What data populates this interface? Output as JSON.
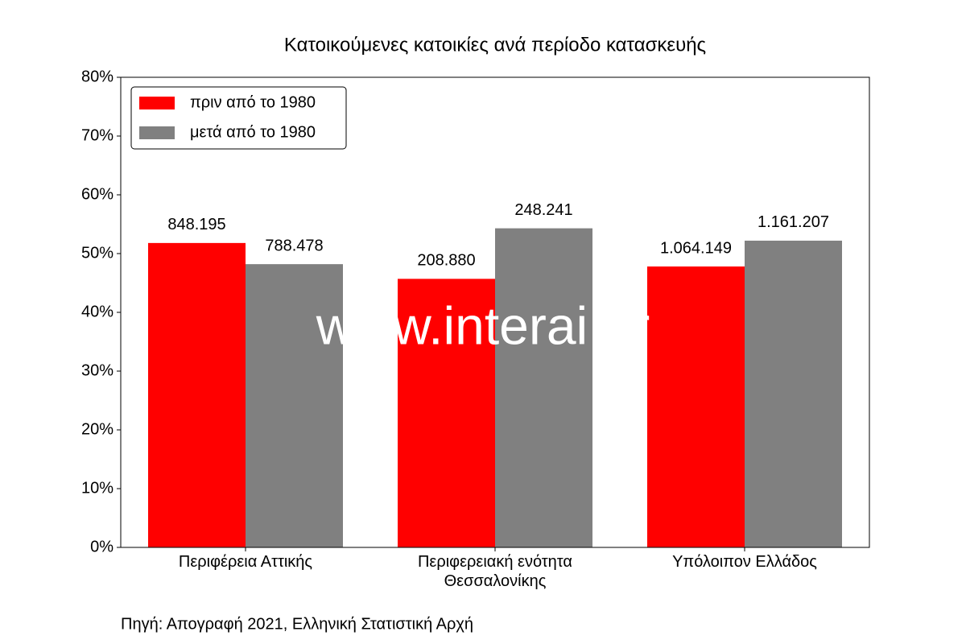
{
  "chart_data": {
    "type": "bar",
    "title": "Κατοικούμενες κατοικίες ανά περίοδο κατασκευής",
    "categories": [
      "Περιφέρεια Αττικής",
      "Περιφερειακή ενότητα Θεσσαλονίκης",
      "Υπόλοιπον Ελλάδος"
    ],
    "series": [
      {
        "name": "πριν από το 1980",
        "color": "#ff0000",
        "values": [
          51.8,
          45.7,
          47.8
        ],
        "count_labels": [
          "848.195",
          "208.880",
          "1.064.149"
        ]
      },
      {
        "name": "μετά από το 1980",
        "color": "#808080",
        "values": [
          48.2,
          54.3,
          52.2
        ],
        "count_labels": [
          "788.478",
          "248.241",
          "1.161.207"
        ]
      }
    ],
    "ylim": [
      0,
      80
    ],
    "yticks": [
      {
        "value": 0,
        "label": "0%"
      },
      {
        "value": 10,
        "label": "10%"
      },
      {
        "value": 20,
        "label": "20%"
      },
      {
        "value": 30,
        "label": "30%"
      },
      {
        "value": 40,
        "label": "40%"
      },
      {
        "value": 50,
        "label": "50%"
      },
      {
        "value": 60,
        "label": "60%"
      },
      {
        "value": 70,
        "label": "70%"
      },
      {
        "value": 80,
        "label": "80%"
      }
    ],
    "legend": "upper left",
    "watermark": "www.interai.gr",
    "source": "Πηγή: Απογραφή 2021, Ελληνική Στατιστική Αρχή"
  }
}
